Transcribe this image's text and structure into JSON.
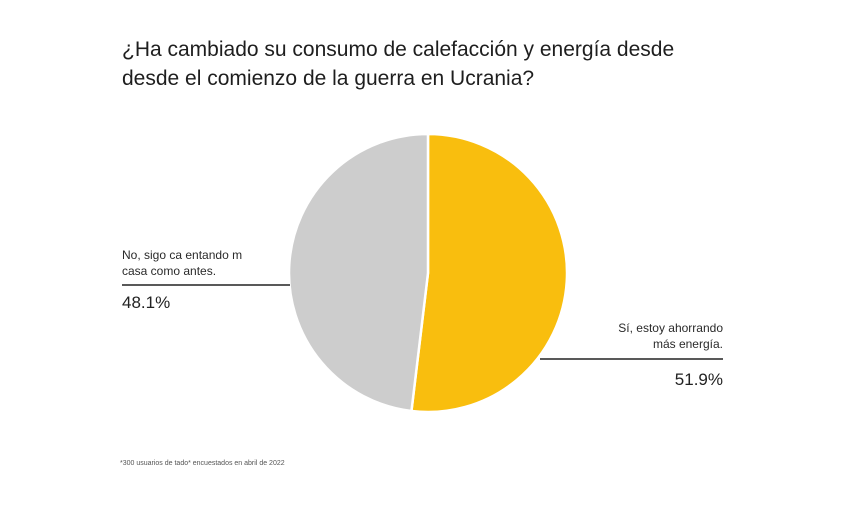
{
  "title_line1": "¿Ha cambiado su consumo de calefacción y energía desde",
  "title_line2": "desde el comienzo de la guerra en Ucrania?",
  "footnote": "*300 usuarios de tado* encuestados en abril de 2022",
  "chart_data": {
    "type": "pie",
    "title": "¿Ha cambiado su consumo de calefacción y energía desde desde el comienzo de la guerra en Ucrania?",
    "slices": [
      {
        "label_line1": "Sí, estoy ahorrando",
        "label_line2": "más energía.",
        "value": 51.9,
        "value_label": "51.9%",
        "color": "#F9BE0E"
      },
      {
        "label_line1": "No, sigo ca entando m",
        "label_line2": "casa como antes.",
        "value": 48.1,
        "value_label": "48.1%",
        "color": "#CDCDCD"
      }
    ]
  }
}
